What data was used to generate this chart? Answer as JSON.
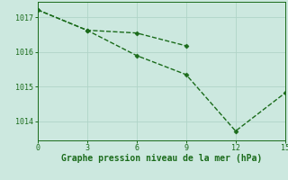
{
  "line1_x": [
    0,
    3,
    6,
    9
  ],
  "line1_y": [
    1017.22,
    1016.63,
    1016.55,
    1016.18
  ],
  "line2_x": [
    0,
    3,
    6,
    9,
    12,
    15
  ],
  "line2_y": [
    1017.22,
    1016.63,
    1015.9,
    1015.35,
    1013.72,
    1014.82
  ],
  "line_color": "#1a6b1a",
  "bg_color": "#cce8df",
  "xlabel": "Graphe pression niveau de la mer (hPa)",
  "xticks": [
    0,
    3,
    6,
    9,
    12,
    15
  ],
  "yticks": [
    1014,
    1015,
    1016,
    1017
  ],
  "xlim": [
    0,
    15
  ],
  "ylim": [
    1013.45,
    1017.45
  ],
  "grid_color": "#b0d4c8",
  "marker": "D",
  "markersize": 2.5,
  "linewidth": 1.0,
  "linestyle": "--",
  "tick_fontsize": 6.0,
  "xlabel_fontsize": 7.0
}
